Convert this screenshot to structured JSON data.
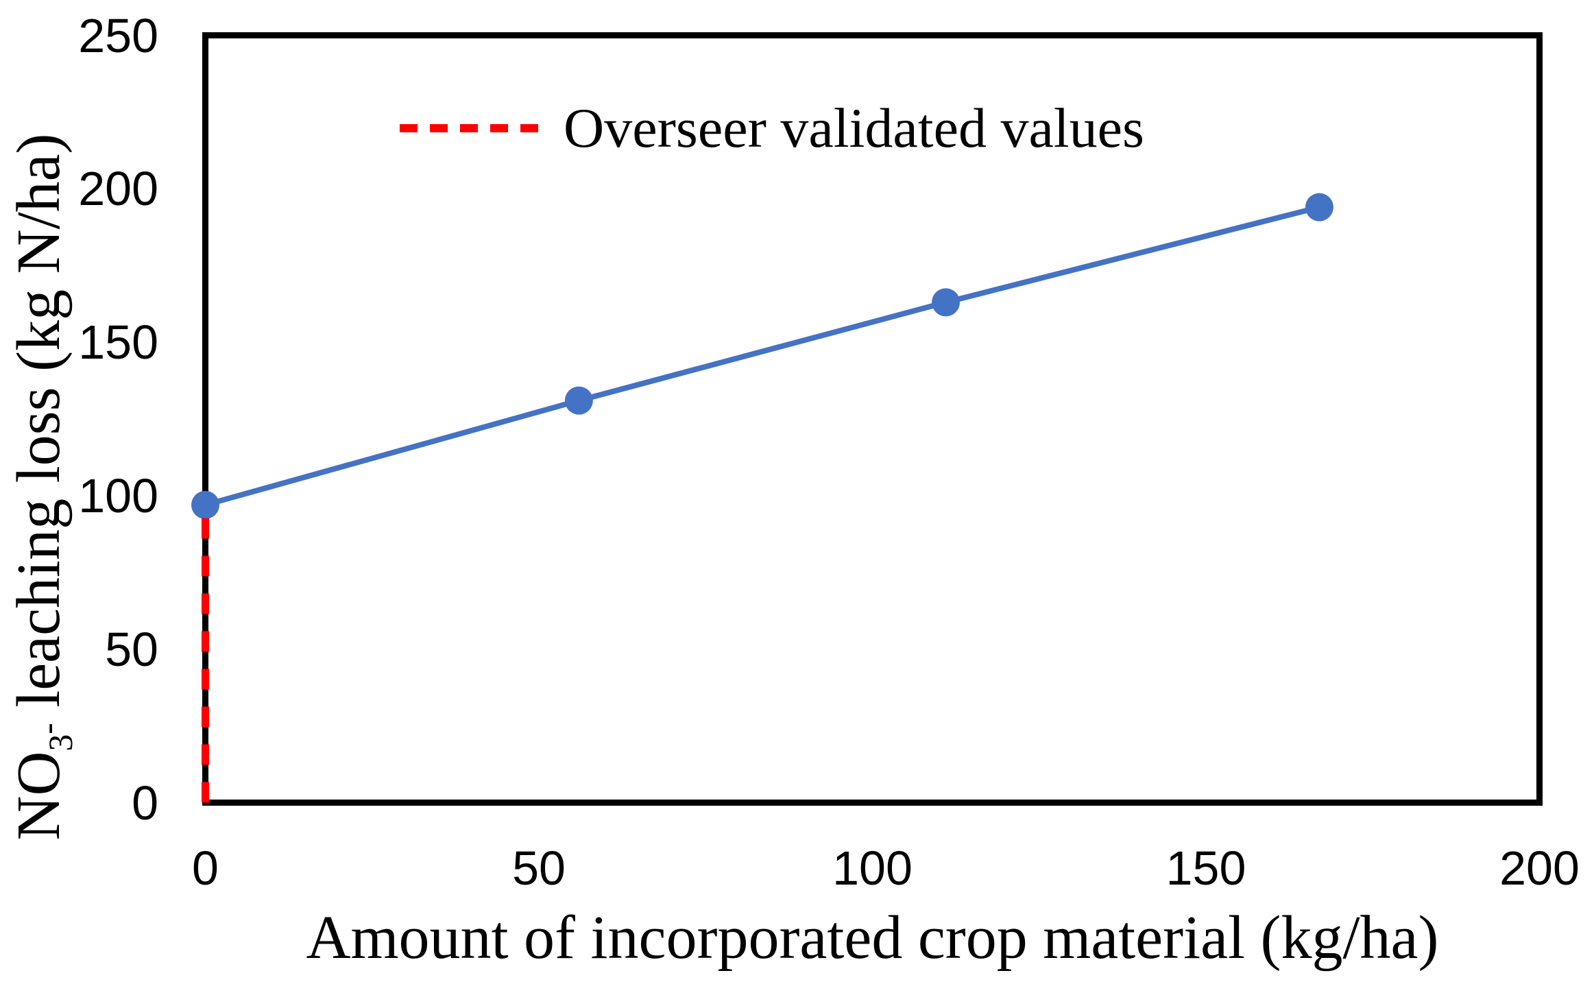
{
  "background_color": "#FFFFFF",
  "frame_color": "#000000",
  "chart_data": {
    "type": "line",
    "title": "",
    "xlabel": "Amount of incorporated crop material (kg/ha)",
    "ylabel": "NO3- leaching loss (kg N/ha)",
    "ylabel_parts": {
      "base": "NO",
      "sub": "3",
      "sup": "-",
      "rest": " leaching loss (kg N/ha)"
    },
    "xlim": [
      0,
      200
    ],
    "ylim": [
      0,
      250
    ],
    "xticks": [
      0,
      50,
      100,
      150,
      200
    ],
    "yticks": [
      0,
      50,
      100,
      150,
      200,
      250
    ],
    "grid": false,
    "series": [
      {
        "name": "NO3- leaching loss",
        "style": "solid-line-with-markers",
        "color": "#4472C4",
        "x": [
          0,
          56,
          111,
          167
        ],
        "y": [
          97,
          131,
          163,
          194
        ]
      },
      {
        "name": "Overseer validated values",
        "style": "dashed-vertical-line",
        "color": "#FF0000",
        "x": [
          0,
          0
        ],
        "y": [
          0,
          97
        ]
      }
    ],
    "legend": {
      "label": "Overseer validated values",
      "color": "#FF0000",
      "position": "top-inside"
    }
  }
}
